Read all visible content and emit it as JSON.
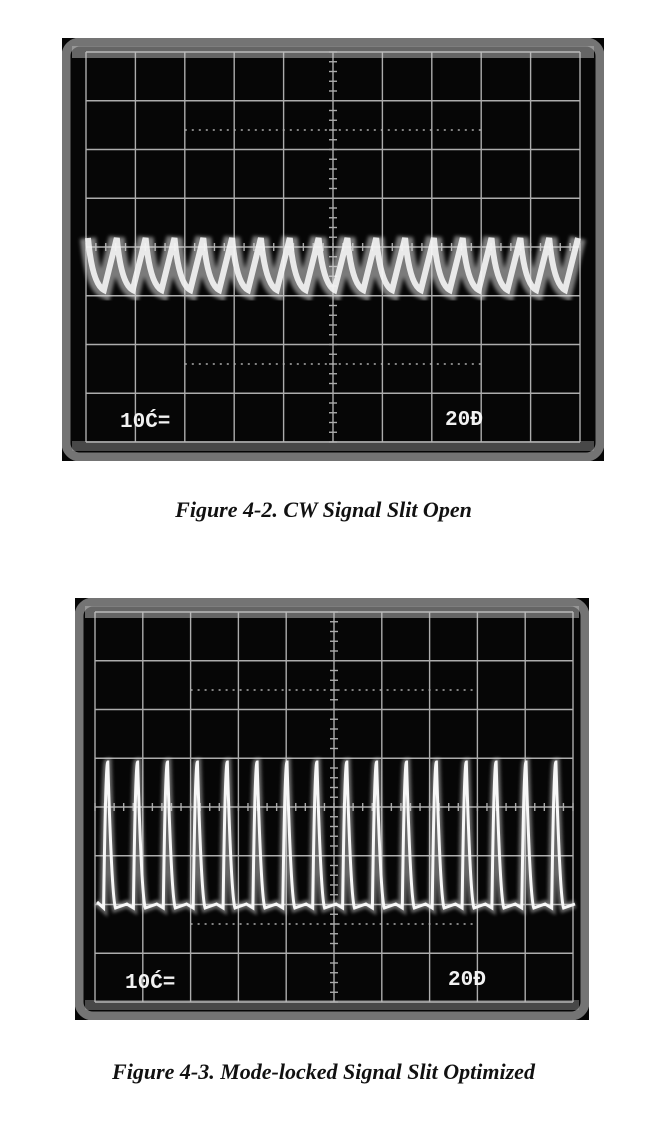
{
  "figures": [
    {
      "id": "fig-4-2",
      "caption": "Figure 4-2.  CW Signal Slit Open",
      "readout_left": "10Ć=",
      "readout_right": "20Đ",
      "trace": {
        "kind": "cw-ripple",
        "cycles": 17
      }
    },
    {
      "id": "fig-4-3",
      "caption": "Figure 4-3.  Mode-locked Signal Slit Optimized",
      "readout_left": "10Ć=",
      "readout_right": "20Đ",
      "trace": {
        "kind": "mode-locked-pulses",
        "pulses": 16
      }
    }
  ],
  "colors": {
    "screen": "#070707",
    "bezel": "#8f8f8f",
    "grid": "#c8c8c8",
    "trace": "#f4f4f4",
    "caption": "#111111"
  }
}
